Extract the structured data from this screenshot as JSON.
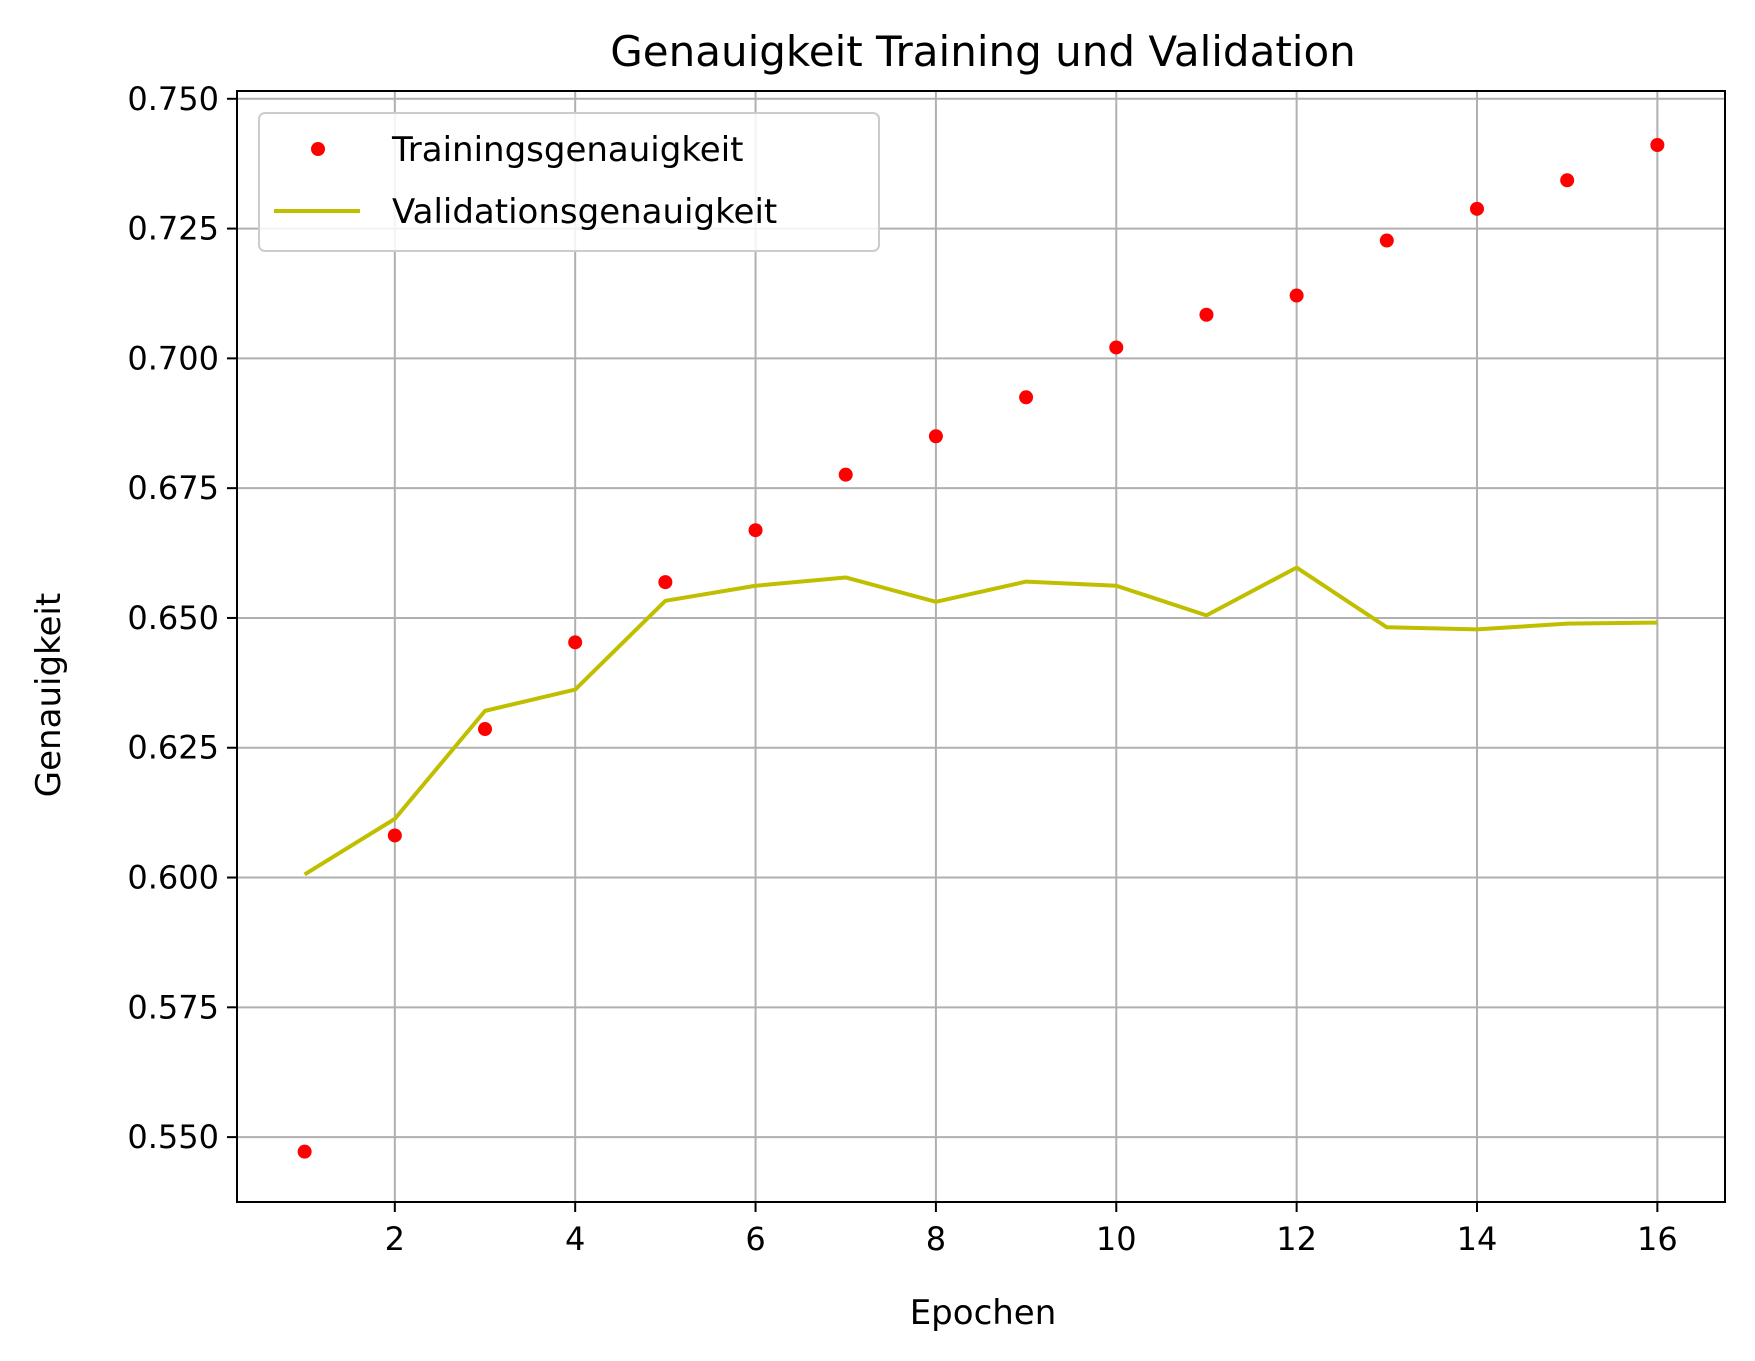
{
  "chart_data": {
    "type": "line",
    "title": "Genauigkeit Training und Validation",
    "xlabel": "Epochen",
    "ylabel": "Genauigkeit",
    "xlim": [
      0.25,
      16.75
    ],
    "ylim": [
      0.5375,
      0.7515
    ],
    "grid": true,
    "legend_position": "top-left",
    "x_ticks": [
      2,
      4,
      6,
      8,
      10,
      12,
      14,
      16
    ],
    "y_ticks": [
      "0.550",
      "0.575",
      "0.600",
      "0.625",
      "0.650",
      "0.675",
      "0.700",
      "0.725",
      "0.750"
    ],
    "series": [
      {
        "name": "Trainingsgenauigkeit",
        "style": "points",
        "color": "#ff0000",
        "x": [
          1,
          2,
          3,
          4,
          5,
          6,
          7,
          8,
          9,
          10,
          11,
          12,
          13,
          14,
          15,
          16
        ],
        "values": [
          0.5472,
          0.6081,
          0.6286,
          0.6453,
          0.6569,
          0.6669,
          0.6776,
          0.685,
          0.6925,
          0.7021,
          0.7084,
          0.7121,
          0.7227,
          0.7288,
          0.7343,
          0.7411
        ]
      },
      {
        "name": "Validationsgenauigkeit",
        "style": "line",
        "color": "#bfbf00",
        "x": [
          1,
          2,
          3,
          4,
          5,
          6,
          7,
          8,
          9,
          10,
          11,
          12,
          13,
          14,
          15,
          16
        ],
        "values": [
          0.6006,
          0.6113,
          0.6321,
          0.6362,
          0.6533,
          0.6562,
          0.6578,
          0.6531,
          0.657,
          0.6562,
          0.6505,
          0.6597,
          0.6482,
          0.6478,
          0.6489,
          0.6491
        ]
      }
    ]
  }
}
